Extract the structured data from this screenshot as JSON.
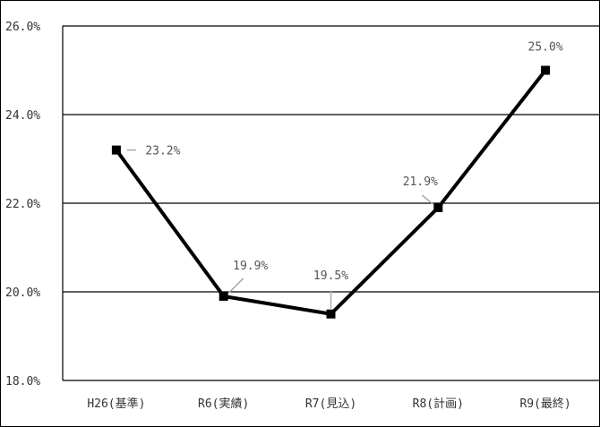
{
  "chart_data": {
    "type": "line",
    "categories": [
      "H26(基準)",
      "R6(実績)",
      "R7(見込)",
      "R8(計画)",
      "R9(最終)"
    ],
    "values": [
      23.2,
      19.9,
      19.5,
      21.9,
      25.0
    ],
    "data_labels": [
      "23.2%",
      "19.9%",
      "19.5%",
      "21.9%",
      "25.0%"
    ],
    "y_ticks": [
      18.0,
      20.0,
      22.0,
      24.0,
      26.0
    ],
    "y_tick_labels": [
      "18.0%",
      "20.0%",
      "22.0%",
      "24.0%",
      "26.0%"
    ],
    "ylim": [
      18.0,
      26.0
    ],
    "title": "",
    "xlabel": "",
    "ylabel": "",
    "grid": true,
    "line_color": "#000000",
    "marker": "square"
  }
}
